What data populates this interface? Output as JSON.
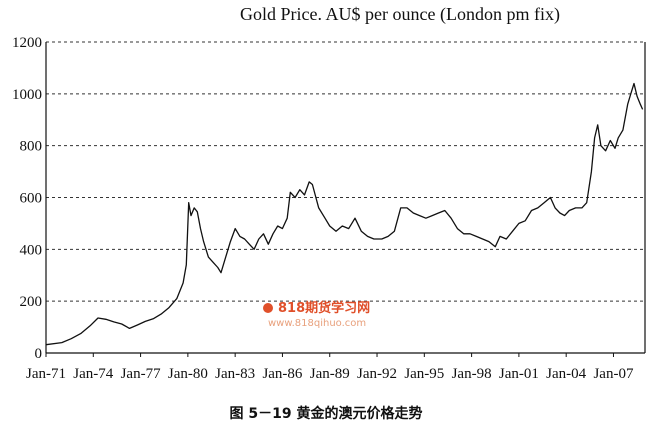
{
  "chart_data": {
    "type": "line",
    "title": "Gold Price. AU$ per ounce (London pm fix)",
    "xlabel": "",
    "ylabel": "",
    "ylim": [
      0,
      1200
    ],
    "yticks": [
      0,
      200,
      400,
      600,
      800,
      1000,
      1200
    ],
    "ytick_labels": [
      "0",
      "200",
      "400",
      "600",
      "800",
      "1000",
      "1200"
    ],
    "x_range": [
      1971.0,
      2009.0
    ],
    "xticks": [
      1971,
      1974,
      1977,
      1980,
      1983,
      1986,
      1989,
      1992,
      1995,
      1998,
      2001,
      2004,
      2007
    ],
    "xtick_labels": [
      "Jan-71",
      "Jan-74",
      "Jan-77",
      "Jan-80",
      "Jan-83",
      "Jan-86",
      "Jan-89",
      "Jan-92",
      "Jan-95",
      "Jan-98",
      "Jan-01",
      "Jan-04",
      "Jan-07"
    ],
    "grid": true,
    "legend": "none",
    "series": [
      {
        "color": "#111111",
        "points": [
          [
            1971.0,
            32
          ],
          [
            1972.0,
            40
          ],
          [
            1972.6,
            55
          ],
          [
            1973.2,
            75
          ],
          [
            1973.8,
            105
          ],
          [
            1974.3,
            135
          ],
          [
            1974.8,
            130
          ],
          [
            1975.3,
            120
          ],
          [
            1975.8,
            112
          ],
          [
            1976.3,
            95
          ],
          [
            1976.8,
            108
          ],
          [
            1977.3,
            122
          ],
          [
            1977.8,
            132
          ],
          [
            1978.3,
            150
          ],
          [
            1978.8,
            175
          ],
          [
            1979.3,
            210
          ],
          [
            1979.7,
            270
          ],
          [
            1979.9,
            340
          ],
          [
            1980.05,
            580
          ],
          [
            1980.2,
            530
          ],
          [
            1980.4,
            560
          ],
          [
            1980.6,
            545
          ],
          [
            1980.8,
            480
          ],
          [
            1981.0,
            430
          ],
          [
            1981.3,
            370
          ],
          [
            1981.6,
            350
          ],
          [
            1981.9,
            330
          ],
          [
            1982.1,
            310
          ],
          [
            1982.4,
            370
          ],
          [
            1982.7,
            430
          ],
          [
            1983.0,
            480
          ],
          [
            1983.3,
            450
          ],
          [
            1983.6,
            440
          ],
          [
            1983.9,
            420
          ],
          [
            1984.2,
            400
          ],
          [
            1984.5,
            440
          ],
          [
            1984.8,
            460
          ],
          [
            1985.1,
            420
          ],
          [
            1985.4,
            460
          ],
          [
            1985.7,
            490
          ],
          [
            1986.0,
            480
          ],
          [
            1986.3,
            520
          ],
          [
            1986.5,
            620
          ],
          [
            1986.8,
            600
          ],
          [
            1987.1,
            630
          ],
          [
            1987.4,
            610
          ],
          [
            1987.7,
            660
          ],
          [
            1987.9,
            650
          ],
          [
            1988.3,
            560
          ],
          [
            1988.7,
            520
          ],
          [
            1989.0,
            490
          ],
          [
            1989.4,
            470
          ],
          [
            1989.8,
            490
          ],
          [
            1990.2,
            480
          ],
          [
            1990.6,
            520
          ],
          [
            1991.0,
            470
          ],
          [
            1991.4,
            450
          ],
          [
            1991.8,
            440
          ],
          [
            1992.3,
            440
          ],
          [
            1992.7,
            450
          ],
          [
            1993.1,
            470
          ],
          [
            1993.5,
            560
          ],
          [
            1993.9,
            560
          ],
          [
            1994.3,
            540
          ],
          [
            1994.7,
            530
          ],
          [
            1995.1,
            520
          ],
          [
            1995.5,
            530
          ],
          [
            1995.9,
            540
          ],
          [
            1996.3,
            550
          ],
          [
            1996.7,
            520
          ],
          [
            1997.1,
            480
          ],
          [
            1997.5,
            460
          ],
          [
            1997.9,
            460
          ],
          [
            1998.3,
            450
          ],
          [
            1998.7,
            440
          ],
          [
            1999.1,
            430
          ],
          [
            1999.5,
            410
          ],
          [
            1999.8,
            450
          ],
          [
            2000.2,
            440
          ],
          [
            2000.6,
            470
          ],
          [
            2001.0,
            500
          ],
          [
            2001.4,
            510
          ],
          [
            2001.8,
            550
          ],
          [
            2002.2,
            560
          ],
          [
            2002.6,
            580
          ],
          [
            2003.0,
            600
          ],
          [
            2003.3,
            560
          ],
          [
            2003.6,
            540
          ],
          [
            2003.9,
            530
          ],
          [
            2004.2,
            550
          ],
          [
            2004.6,
            560
          ],
          [
            2005.0,
            560
          ],
          [
            2005.3,
            580
          ],
          [
            2005.6,
            700
          ],
          [
            2005.8,
            830
          ],
          [
            2006.0,
            880
          ],
          [
            2006.2,
            800
          ],
          [
            2006.5,
            780
          ],
          [
            2006.8,
            820
          ],
          [
            2007.1,
            790
          ],
          [
            2007.3,
            830
          ],
          [
            2007.6,
            860
          ],
          [
            2007.9,
            960
          ],
          [
            2008.1,
            1000
          ],
          [
            2008.3,
            1040
          ],
          [
            2008.5,
            990
          ],
          [
            2008.7,
            960
          ],
          [
            2008.85,
            940
          ]
        ]
      }
    ],
    "watermark": {
      "main": "818期货学习网",
      "sub": "www.818qihuo.com"
    }
  },
  "caption": "图 5－19 黄金的澳元价格走势"
}
